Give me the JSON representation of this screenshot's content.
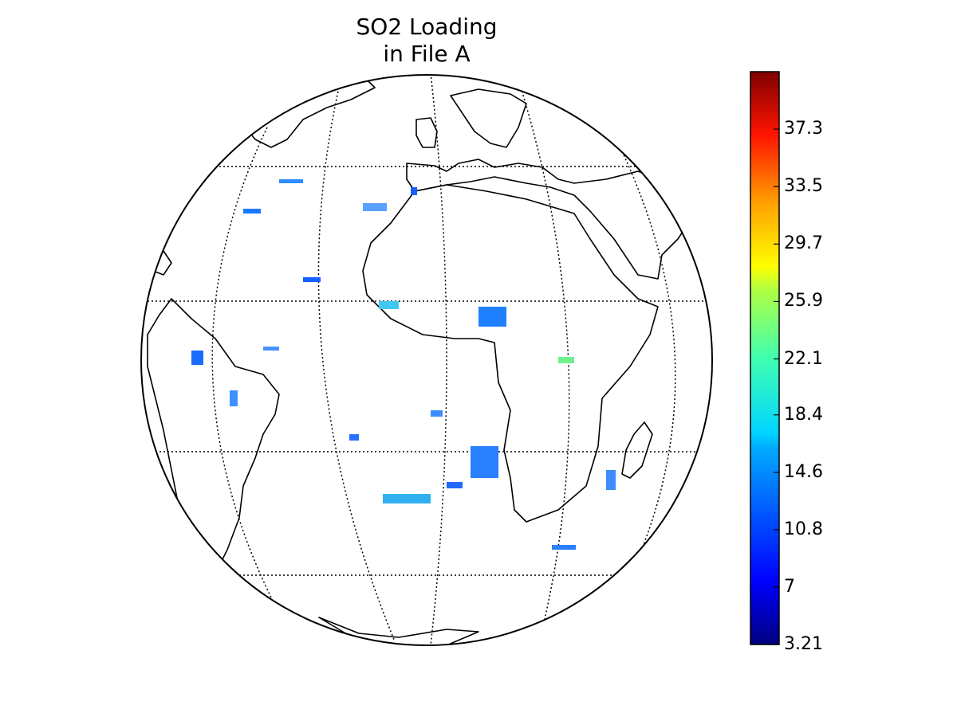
{
  "title_line1": "SO2 Loading",
  "title_line2": "in File A",
  "map": {
    "projection": "orthographic",
    "graticule": "dotted",
    "colormap": "jet"
  },
  "colorbar": {
    "min": 3.21,
    "max": 41.1,
    "tick_labels": [
      "3.21",
      "7",
      "10.8",
      "14.6",
      "18.4",
      "22.1",
      "25.9",
      "29.7",
      "33.5",
      "37.3"
    ],
    "tick_values": [
      3.21,
      7.0,
      10.8,
      14.6,
      18.4,
      22.1,
      25.9,
      29.7,
      33.5,
      37.3
    ]
  }
}
